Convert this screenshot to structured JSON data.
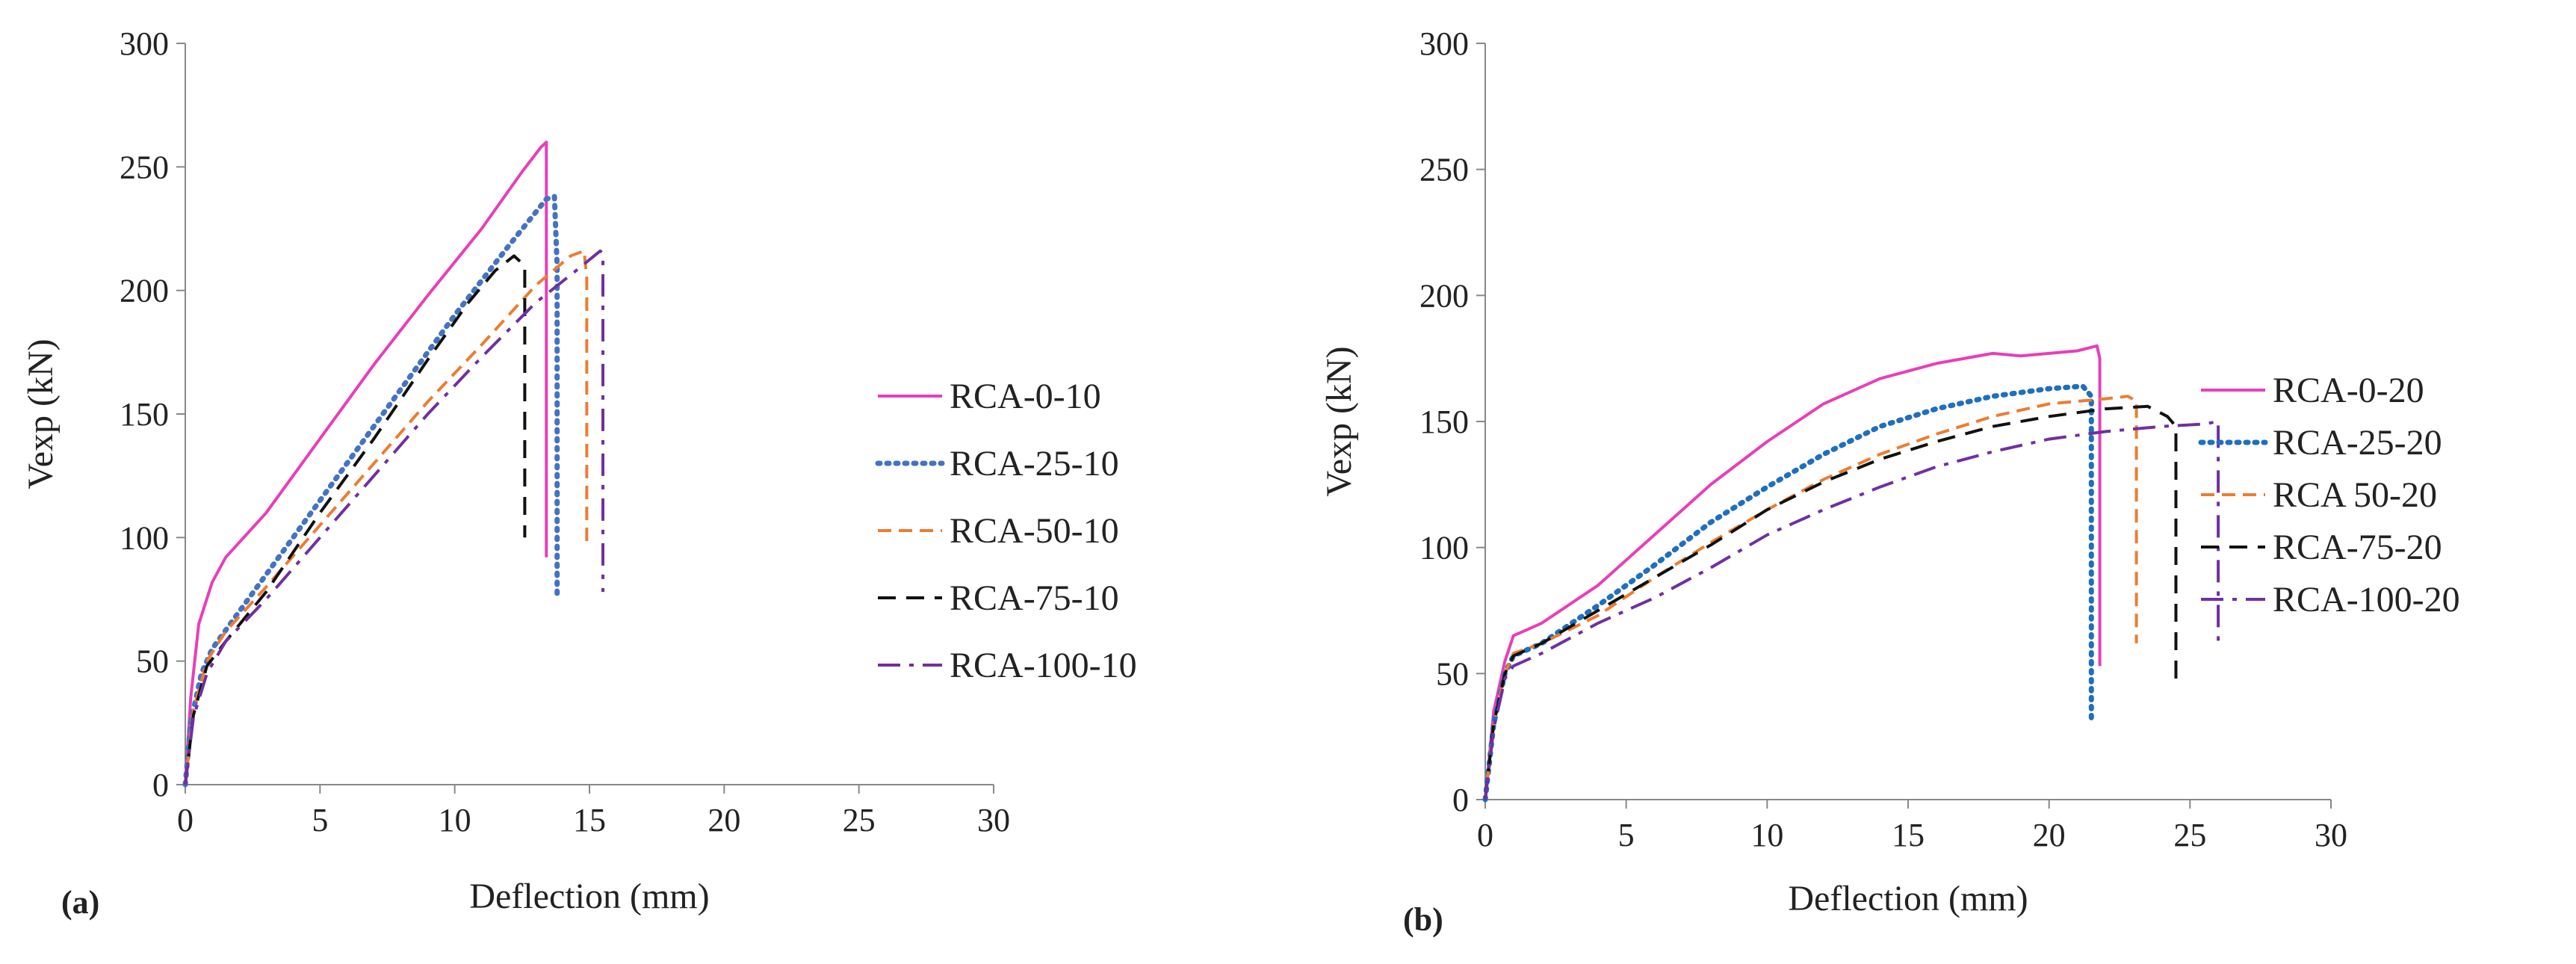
{
  "chart_data": [
    {
      "type": "line",
      "panel_label": "(a)",
      "xlabel": "Deflection (mm)",
      "ylabel": "Vexp (kN)",
      "xlim": [
        0,
        30
      ],
      "ylim": [
        0,
        300
      ],
      "xticks": [
        0,
        5,
        10,
        15,
        20,
        25,
        30
      ],
      "yticks": [
        0,
        50,
        100,
        150,
        200,
        250,
        300
      ],
      "grid": false,
      "legend_position": "right",
      "series": [
        {
          "name": "RCA-0-10",
          "color": "#e83fb7",
          "dash": "solid",
          "x": [
            0,
            0.2,
            0.5,
            1.0,
            1.5,
            3,
            5,
            7,
            9,
            11,
            12.5,
            13.2,
            13.4,
            13.4
          ],
          "y": [
            0,
            35,
            65,
            82,
            92,
            110,
            140,
            170,
            198,
            225,
            248,
            258,
            260,
            92
          ]
        },
        {
          "name": "RCA-25-10",
          "color": "#4472c4",
          "dash": "dot",
          "x": [
            0,
            0.2,
            0.6,
            1.0,
            2,
            4,
            6,
            8,
            10,
            12,
            13.4,
            13.7,
            13.8,
            13.8
          ],
          "y": [
            0,
            25,
            45,
            55,
            70,
            100,
            130,
            160,
            190,
            218,
            237,
            238,
            210,
            75
          ]
        },
        {
          "name": "RCA-50-10",
          "color": "#ed7d31",
          "dash": "dash",
          "x": [
            0,
            0.3,
            0.8,
            1.5,
            3,
            5,
            7,
            9,
            11,
            13,
            14.3,
            14.8,
            14.9,
            14.9
          ],
          "y": [
            0,
            30,
            50,
            62,
            80,
            105,
            130,
            155,
            178,
            202,
            214,
            216,
            205,
            98
          ]
        },
        {
          "name": "RCA-75-10",
          "color": "#111111",
          "dash": "longdash",
          "x": [
            0,
            0.3,
            0.8,
            1.5,
            3,
            5,
            7,
            9,
            10.5,
            11.5,
            12.2,
            12.6,
            12.6
          ],
          "y": [
            0,
            28,
            48,
            58,
            78,
            110,
            140,
            172,
            195,
            208,
            214,
            210,
            100
          ]
        },
        {
          "name": "RCA-100-10",
          "color": "#7030a0",
          "dash": "dashdot",
          "x": [
            0,
            0.3,
            0.8,
            1.5,
            3,
            5,
            7,
            9,
            11,
            13,
            14.5,
            15.4,
            15.5,
            15.5
          ],
          "y": [
            0,
            27,
            45,
            58,
            75,
            100,
            125,
            150,
            173,
            195,
            208,
            216,
            215,
            78
          ]
        }
      ]
    },
    {
      "type": "line",
      "panel_label": "(b)",
      "xlabel": "Deflection (mm)",
      "ylabel": "Vexp (kN)",
      "xlim": [
        0,
        30
      ],
      "ylim": [
        0,
        300
      ],
      "xticks": [
        0,
        5,
        10,
        15,
        20,
        25,
        30
      ],
      "yticks": [
        0,
        50,
        100,
        150,
        200,
        250,
        300
      ],
      "grid": false,
      "legend_position": "right",
      "series": [
        {
          "name": "RCA-0-20",
          "color": "#e83fb7",
          "dash": "solid",
          "x": [
            0,
            0.3,
            0.7,
            1.0,
            2,
            4,
            6,
            8,
            10,
            12,
            14,
            16,
            18,
            19,
            21,
            21.7,
            21.8,
            21.8
          ],
          "y": [
            0,
            35,
            55,
            65,
            70,
            85,
            105,
            125,
            142,
            157,
            167,
            173,
            177,
            176,
            178,
            180,
            175,
            53
          ]
        },
        {
          "name": "RCA-25-20",
          "color": "#1f6fc0",
          "dash": "dot",
          "x": [
            0,
            0.3,
            0.7,
            1.0,
            2,
            4,
            6,
            8,
            10,
            12,
            14,
            16,
            18,
            20,
            21.2,
            21.5,
            21.5
          ],
          "y": [
            0,
            30,
            50,
            57,
            62,
            77,
            93,
            110,
            124,
            137,
            148,
            155,
            160,
            163,
            164,
            160,
            30
          ]
        },
        {
          "name": "RCA 50-20",
          "color": "#ed7d31",
          "dash": "dash",
          "x": [
            0,
            0.3,
            0.7,
            1.0,
            2,
            4,
            6,
            8,
            10,
            12,
            14,
            16,
            18,
            20,
            22,
            22.8,
            23.1,
            23.1
          ],
          "y": [
            0,
            30,
            50,
            58,
            62,
            73,
            88,
            102,
            115,
            127,
            137,
            145,
            152,
            157,
            159,
            160,
            158,
            62
          ]
        },
        {
          "name": "RCA-75-20",
          "color": "#111111",
          "dash": "longdash",
          "x": [
            0,
            0.3,
            0.7,
            1.0,
            2,
            4,
            6,
            8,
            10,
            12,
            14,
            16,
            18,
            20,
            22,
            23.5,
            24.2,
            24.5,
            24.5
          ],
          "y": [
            0,
            30,
            50,
            57,
            62,
            75,
            88,
            101,
            115,
            126,
            135,
            142,
            148,
            152,
            155,
            156,
            152,
            148,
            48
          ]
        },
        {
          "name": "RCA-100-20",
          "color": "#7030a0",
          "dash": "dashdot",
          "x": [
            0,
            0.3,
            0.7,
            1.0,
            2,
            4,
            6,
            8,
            10,
            12,
            14,
            16,
            18,
            20,
            22,
            24,
            25.5,
            26,
            26
          ],
          "y": [
            0,
            28,
            48,
            53,
            58,
            70,
            80,
            92,
            105,
            115,
            124,
            132,
            138,
            143,
            146,
            148,
            149,
            150,
            62
          ]
        }
      ]
    }
  ]
}
